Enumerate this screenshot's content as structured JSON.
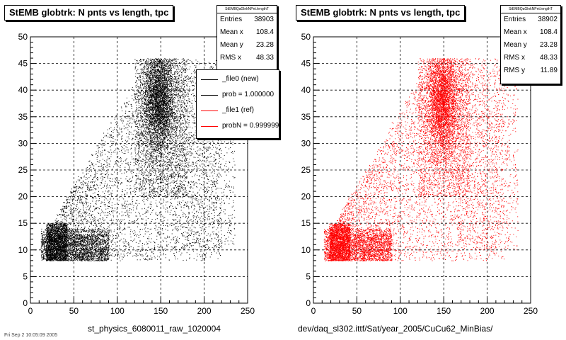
{
  "chart_data": [
    {
      "type": "scatter",
      "title": "StEMB globtrk: N pnts vs length, tpc",
      "xlabel": "st_physics_6080011_raw_1020004",
      "ylabel": "",
      "xlim": [
        0,
        250
      ],
      "ylim": [
        0,
        50
      ],
      "xticks": [
        "0",
        "50",
        "100",
        "150",
        "200",
        "250"
      ],
      "yticks": [
        "0",
        "5",
        "10",
        "15",
        "20",
        "25",
        "30",
        "35",
        "40",
        "45",
        "50"
      ],
      "grid": true,
      "color": "#000000",
      "stats": {
        "name": "StEMBQaGlnkNPnt.lengthT",
        "entries_label": "Entries",
        "entries": "38903",
        "meanx_label": "Mean x",
        "meanx": "108.4",
        "meany_label": "Mean y",
        "meany": "23.28",
        "rmsx_label": "RMS x",
        "rmsx": "48.33"
      },
      "legend": [
        {
          "label": "_file0 (new)",
          "color": "#000000"
        },
        {
          "label": "prob = 1.000000",
          "color": "#000000"
        },
        {
          "label": "_file1 (ref)",
          "color": "#ff0000"
        },
        {
          "label": "probN = 0.999999",
          "color": "#ff0000"
        }
      ]
    },
    {
      "type": "scatter",
      "title": "StEMB globtrk: N pnts vs length, tpc",
      "xlabel": "dev/daq_sl302.ittf/Sat/year_2005/CuCu62_MinBias/",
      "ylabel": "",
      "xlim": [
        0,
        250
      ],
      "ylim": [
        0,
        50
      ],
      "xticks": [
        "0",
        "50",
        "100",
        "150",
        "200",
        "250"
      ],
      "yticks": [
        "0",
        "5",
        "10",
        "15",
        "20",
        "25",
        "30",
        "35",
        "40",
        "45",
        "50"
      ],
      "grid": true,
      "color": "#ff0000",
      "stats": {
        "name": "StEMBQaGlnkNPnt.lengthT",
        "entries_label": "Entries",
        "entries": "38902",
        "meanx_label": "Mean x",
        "meanx": "108.4",
        "meany_label": "Mean y",
        "meany": "23.28",
        "rmsx_label": "RMS x",
        "rmsx": "48.33",
        "rmsy_label": "RMS y",
        "rmsy": "11.89"
      }
    }
  ],
  "footer": "Fri Sep 2 10:05:09 2005"
}
